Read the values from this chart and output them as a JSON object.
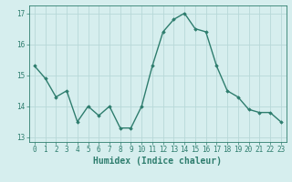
{
  "x": [
    0,
    1,
    2,
    3,
    4,
    5,
    6,
    7,
    8,
    9,
    10,
    11,
    12,
    13,
    14,
    15,
    16,
    17,
    18,
    19,
    20,
    21,
    22,
    23
  ],
  "y": [
    15.3,
    14.9,
    14.3,
    14.5,
    13.5,
    14.0,
    13.7,
    14.0,
    13.3,
    13.3,
    14.0,
    15.3,
    16.4,
    16.8,
    17.0,
    16.5,
    16.4,
    15.3,
    14.5,
    14.3,
    13.9,
    13.8,
    13.8,
    13.5
  ],
  "line_color": "#2e7d6e",
  "marker": "D",
  "marker_size": 1.8,
  "bg_color": "#d6eeee",
  "grid_color": "#b8d8d8",
  "xlabel": "Humidex (Indice chaleur)",
  "xlim": [
    -0.5,
    23.5
  ],
  "ylim": [
    12.85,
    17.25
  ],
  "yticks": [
    13,
    14,
    15,
    16,
    17
  ],
  "xticks": [
    0,
    1,
    2,
    3,
    4,
    5,
    6,
    7,
    8,
    9,
    10,
    11,
    12,
    13,
    14,
    15,
    16,
    17,
    18,
    19,
    20,
    21,
    22,
    23
  ],
  "tick_fontsize": 5.5,
  "xlabel_fontsize": 7.0,
  "line_width": 1.0
}
